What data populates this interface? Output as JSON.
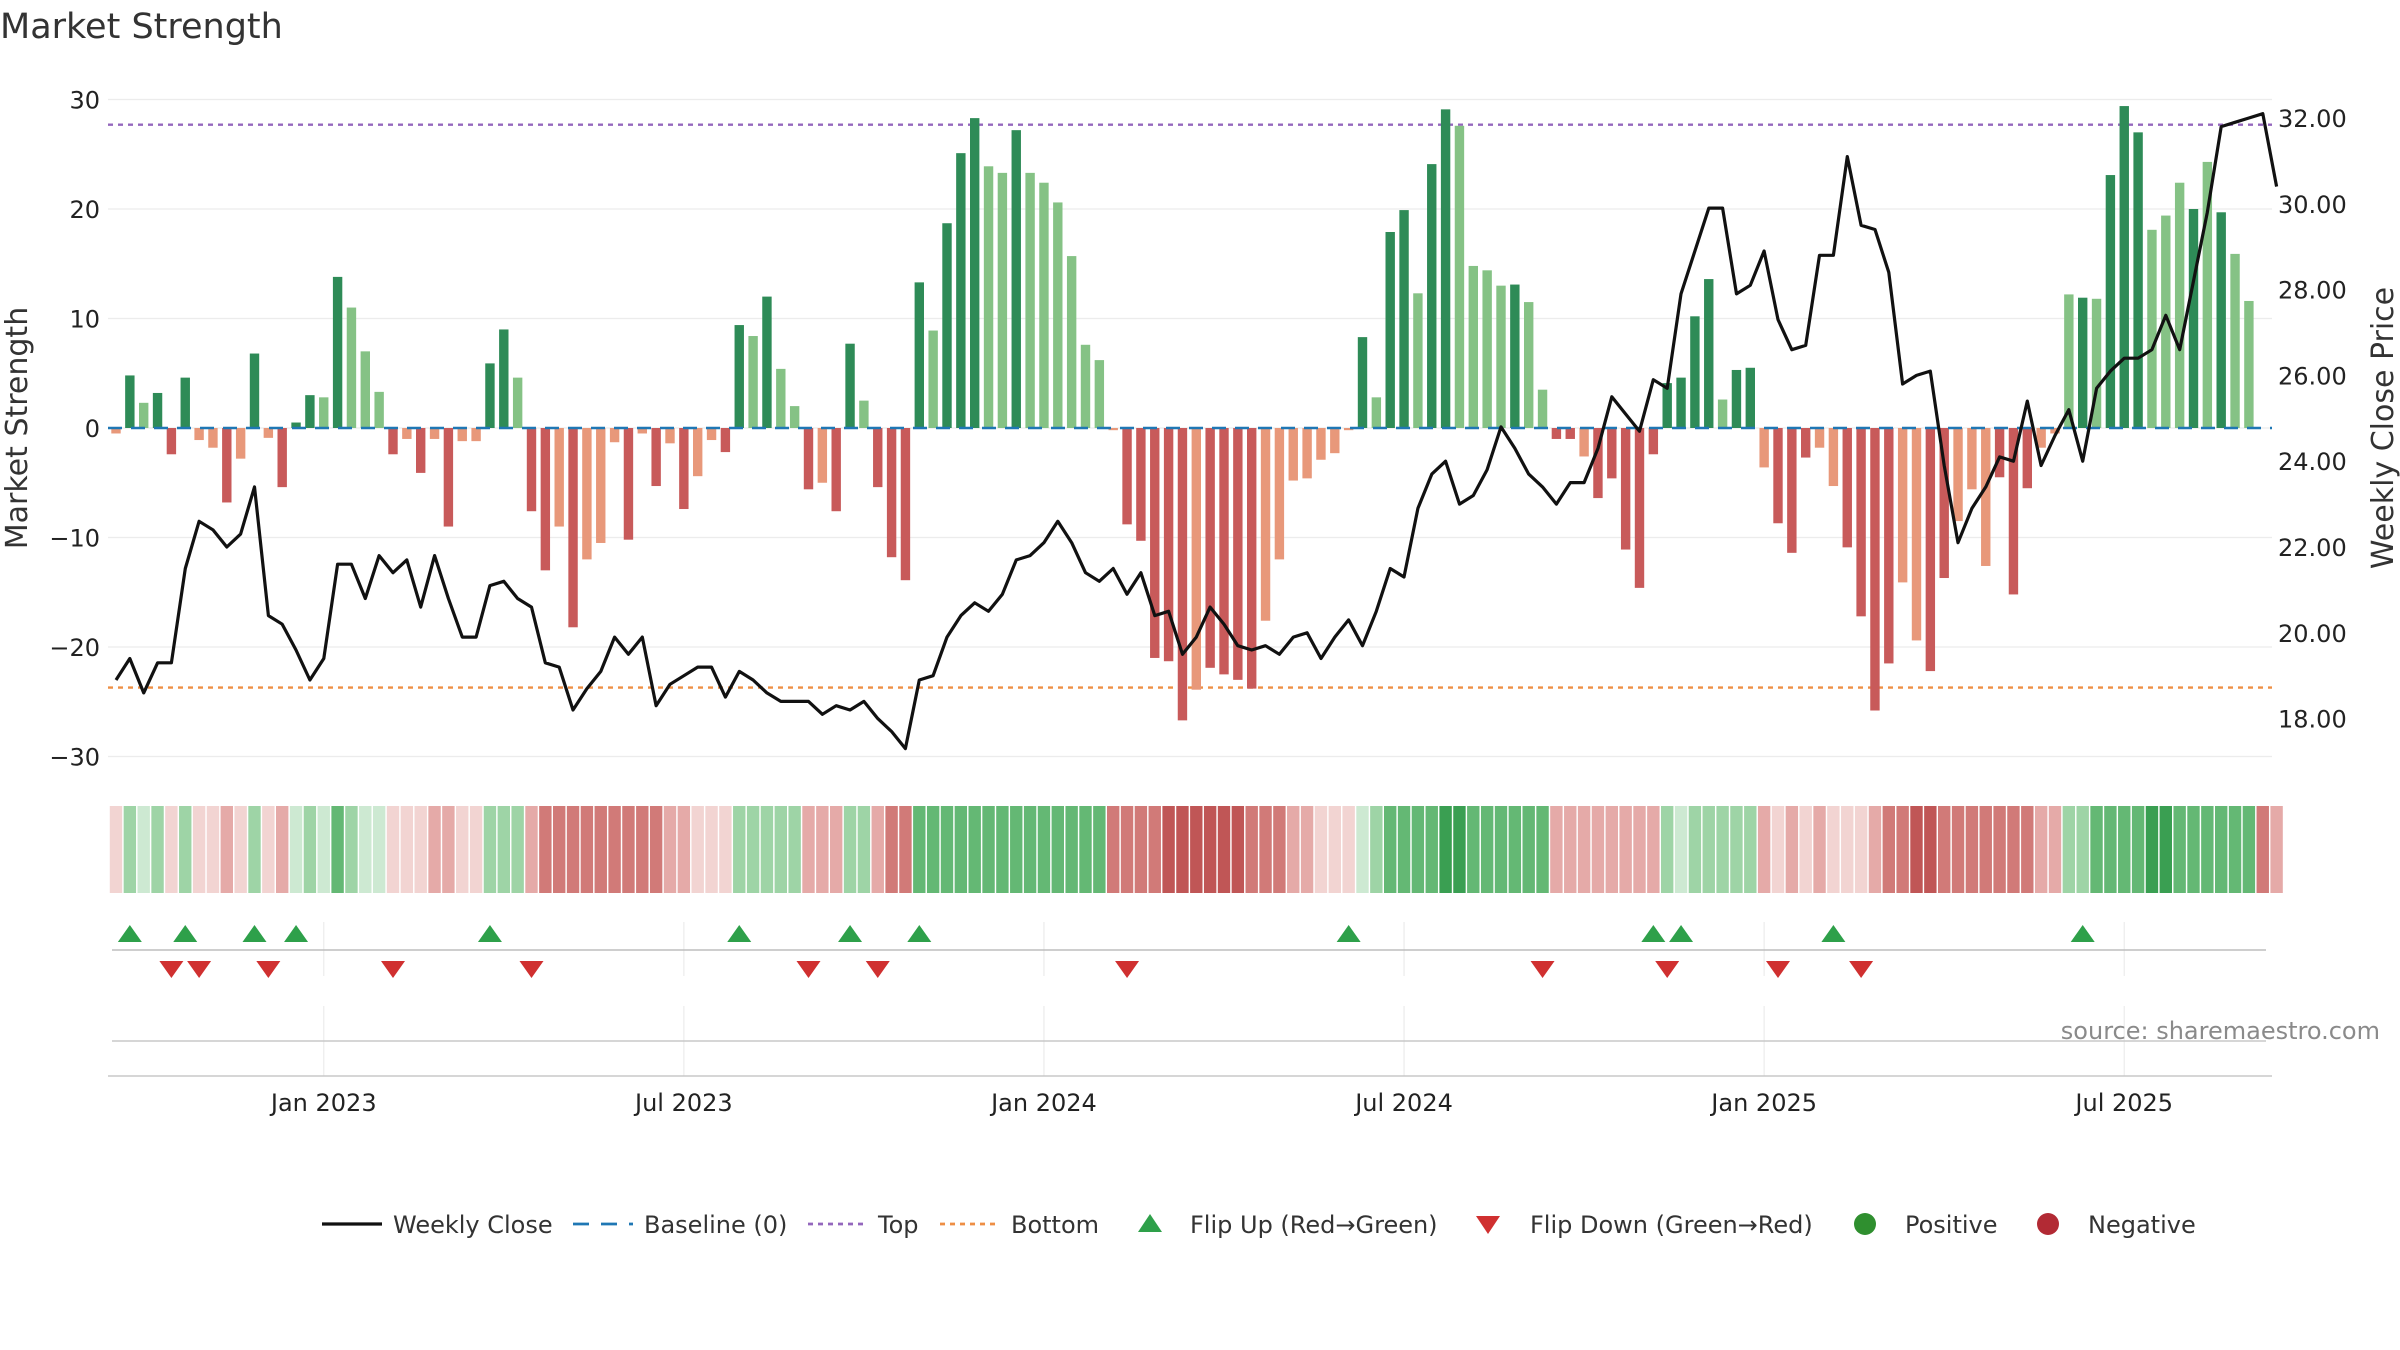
{
  "chart_data": {
    "type": "bar",
    "title": "Market Strength",
    "left_ylabel": "Market Strength",
    "right_ylabel": "Weekly Close Price",
    "source": "source: sharemaestro.com",
    "ylim_left": [
      -30,
      30
    ],
    "ylim_right": [
      16.0,
      32.0
    ],
    "left_ticks": [
      30,
      20,
      10,
      0,
      -10,
      -20,
      -30
    ],
    "left_tick_labels": [
      "30",
      "20",
      "10",
      "0",
      "−10",
      "−20",
      "−30"
    ],
    "right_ticks": [
      32.0,
      30.0,
      28.0,
      26.0,
      24.0,
      22.0,
      20.0,
      18.0
    ],
    "right_tick_labels": [
      "32.00",
      "30.00",
      "28.00",
      "26.00",
      "24.00",
      "22.00",
      "20.00",
      "18.00"
    ],
    "x_tick_labels": [
      "Jan 2023",
      "Jul 2023",
      "Jan 2024",
      "Jul 2024",
      "Jan 2025",
      "Jul 2025"
    ],
    "x_tick_weeks": [
      15,
      41,
      67,
      93,
      119,
      145
    ],
    "top_line": 27.7,
    "bottom_line": -23.7,
    "grid": true,
    "legend_position": "bottom",
    "legend": [
      {
        "label": "Weekly Close",
        "kind": "line"
      },
      {
        "label": "Baseline (0)",
        "kind": "dash"
      },
      {
        "label": "Top",
        "kind": "dot-purple"
      },
      {
        "label": "Bottom",
        "kind": "dot-orange"
      },
      {
        "label": "Flip Up (Red→Green)",
        "kind": "tri-up"
      },
      {
        "label": "Flip Down (Green→Red)",
        "kind": "tri-down"
      },
      {
        "label": "Positive",
        "kind": "circle-green"
      },
      {
        "label": "Negative",
        "kind": "circle-red"
      }
    ],
    "strength": [
      -0.5,
      4.8,
      2.3,
      3.2,
      -2.4,
      4.6,
      -1.1,
      -1.8,
      -6.8,
      -2.8,
      6.8,
      -0.9,
      -5.4,
      0.5,
      3.0,
      2.8,
      13.8,
      11.0,
      7.0,
      3.3,
      -2.4,
      -1.0,
      -4.1,
      -1.0,
      -9.0,
      -1.2,
      -1.2,
      5.9,
      9.0,
      4.6,
      -7.6,
      -13.0,
      -9.0,
      -18.2,
      -12.0,
      -10.5,
      -1.3,
      -10.2,
      -0.5,
      -5.3,
      -1.4,
      -7.4,
      -4.4,
      -1.1,
      -2.2,
      9.4,
      8.4,
      12.0,
      5.4,
      2.0,
      -5.6,
      -5.0,
      -7.6,
      7.7,
      2.5,
      -5.4,
      -11.8,
      -13.9,
      13.3,
      8.9,
      18.7,
      25.1,
      28.3,
      23.9,
      23.3,
      27.2,
      23.3,
      22.4,
      20.6,
      15.7,
      7.6,
      6.2,
      -0.2,
      -8.8,
      -10.3,
      -21.0,
      -21.3,
      -26.7,
      -23.9,
      -21.9,
      -22.5,
      -23.0,
      -23.8,
      -17.6,
      -12.0,
      -4.8,
      -4.6,
      -2.9,
      -2.3,
      -0.2,
      8.3,
      2.8,
      17.9,
      19.9,
      12.3,
      24.1,
      29.1,
      27.6,
      14.8,
      14.4,
      13.0,
      13.1,
      11.5,
      3.5,
      -1.0,
      -1.0,
      -2.6,
      -6.4,
      -4.6,
      -11.1,
      -14.6,
      -2.4,
      4.1,
      4.6,
      10.2,
      13.6,
      2.6,
      5.3,
      5.5,
      -3.6,
      -8.7,
      -11.4,
      -2.7,
      -1.8,
      -5.3,
      -10.9,
      -17.2,
      -25.8,
      -21.5,
      -14.1,
      -19.4,
      -22.2,
      -13.7,
      -8.5,
      -5.6,
      -12.6,
      -4.5,
      -15.2,
      -5.5,
      -1.8,
      -0.5,
      12.2,
      11.9,
      11.8,
      23.1,
      29.4,
      27.0,
      18.1,
      19.4,
      22.4,
      20.0,
      24.3,
      19.7,
      15.9,
      11.6
    ],
    "strength_shade": [
      1,
      2,
      1,
      2,
      2,
      2,
      1,
      1,
      2,
      1,
      2,
      1,
      2,
      2,
      2,
      1,
      2,
      1,
      1,
      1,
      2,
      1,
      2,
      1,
      2,
      1,
      1,
      2,
      2,
      1,
      2,
      2,
      1,
      2,
      1,
      1,
      1,
      2,
      1,
      2,
      1,
      2,
      1,
      1,
      2,
      2,
      1,
      2,
      1,
      1,
      2,
      1,
      2,
      2,
      1,
      2,
      2,
      2,
      2,
      1,
      2,
      2,
      2,
      1,
      1,
      2,
      1,
      1,
      1,
      1,
      1,
      1,
      1,
      2,
      2,
      2,
      2,
      2,
      1,
      2,
      2,
      2,
      2,
      1,
      1,
      1,
      1,
      1,
      1,
      1,
      2,
      1,
      2,
      2,
      1,
      2,
      2,
      1,
      1,
      1,
      1,
      2,
      1,
      1,
      2,
      2,
      1,
      2,
      2,
      2,
      2,
      2,
      2,
      2,
      2,
      2,
      1,
      2,
      2,
      1,
      2,
      2,
      2,
      1,
      1,
      2,
      2,
      2,
      2,
      1,
      1,
      2,
      2,
      1,
      1,
      1,
      2,
      2,
      2,
      1,
      1,
      1,
      2,
      1,
      2,
      2,
      2,
      1,
      1,
      1,
      2,
      1,
      2,
      1,
      1,
      1
    ],
    "weekly_close": [
      18.9,
      19.4,
      18.6,
      19.3,
      19.3,
      21.5,
      22.6,
      22.4,
      22.0,
      22.3,
      23.4,
      20.4,
      20.2,
      19.6,
      18.9,
      19.4,
      21.6,
      21.6,
      20.8,
      21.8,
      21.4,
      21.7,
      20.6,
      21.8,
      20.8,
      19.9,
      19.9,
      21.1,
      21.2,
      20.8,
      20.6,
      19.3,
      19.2,
      18.2,
      18.7,
      19.1,
      19.9,
      19.5,
      19.9,
      18.3,
      18.8,
      19.0,
      19.2,
      19.2,
      18.5,
      19.1,
      18.9,
      18.6,
      18.4,
      18.4,
      18.4,
      18.1,
      18.3,
      18.2,
      18.4,
      18.0,
      17.7,
      17.3,
      18.9,
      19.0,
      19.9,
      20.4,
      20.7,
      20.5,
      20.9,
      21.7,
      21.8,
      22.1,
      22.6,
      22.1,
      21.4,
      21.2,
      21.5,
      20.9,
      21.4,
      20.4,
      20.5,
      19.5,
      19.9,
      20.6,
      20.2,
      19.7,
      19.6,
      19.7,
      19.5,
      19.9,
      20.0,
      19.4,
      19.9,
      20.3,
      19.7,
      20.5,
      21.5,
      21.3,
      22.9,
      23.7,
      24.0,
      23.0,
      23.2,
      23.8,
      24.8,
      24.3,
      23.7,
      23.4,
      23.0,
      23.5,
      23.5,
      24.3,
      25.5,
      25.1,
      24.7,
      25.9,
      25.7,
      27.9,
      28.9,
      29.9,
      29.9,
      27.9,
      28.1,
      28.9,
      27.3,
      26.6,
      26.7,
      28.8,
      28.8,
      31.1,
      29.5,
      29.4,
      28.4,
      25.8,
      26.0,
      26.1,
      23.9,
      22.1,
      22.9,
      23.4,
      24.1,
      24.0,
      25.4,
      23.9,
      24.6,
      25.2,
      24.0,
      25.7,
      26.1,
      26.4,
      26.4,
      26.6,
      27.4,
      26.6,
      28.2,
      29.8,
      31.8,
      31.9,
      32.0,
      32.1,
      30.4
    ],
    "flip_up_weeks": [
      1,
      5,
      10,
      13,
      27,
      45,
      53,
      58,
      89,
      111,
      113,
      124,
      142
    ],
    "flip_down_weeks": [
      4,
      6,
      11,
      20,
      30,
      50,
      55,
      73,
      103,
      112,
      120,
      126
    ],
    "regime_strip": [
      1,
      2,
      1,
      2,
      1,
      2,
      1,
      1,
      2,
      1,
      2,
      1,
      2,
      1,
      2,
      1,
      3,
      2,
      1,
      1,
      1,
      1,
      1,
      2,
      2,
      1,
      1,
      2,
      2,
      2,
      2,
      3,
      3,
      3,
      3,
      3,
      3,
      3,
      3,
      3,
      2,
      2,
      1,
      1,
      1,
      2,
      2,
      2,
      2,
      2,
      2,
      2,
      2,
      2,
      2,
      2,
      3,
      3,
      3,
      3,
      3,
      3,
      3,
      3,
      3,
      3,
      3,
      3,
      3,
      3,
      3,
      3,
      3,
      3,
      3,
      3,
      4,
      4,
      4,
      4,
      4,
      4,
      3,
      3,
      3,
      2,
      2,
      1,
      1,
      1,
      1,
      2,
      3,
      3,
      3,
      3,
      4,
      4,
      3,
      3,
      3,
      3,
      3,
      3,
      2,
      2,
      2,
      2,
      2,
      2,
      2,
      2,
      2,
      1,
      2,
      2,
      2,
      2,
      2,
      2,
      1,
      2,
      1,
      2,
      1,
      1,
      1,
      2,
      3,
      3,
      4,
      4,
      3,
      3,
      3,
      3,
      3,
      3,
      3,
      2,
      2,
      2,
      2,
      3,
      3,
      3,
      3,
      4,
      4,
      3,
      3,
      3,
      3,
      3,
      3,
      3,
      2
    ]
  }
}
